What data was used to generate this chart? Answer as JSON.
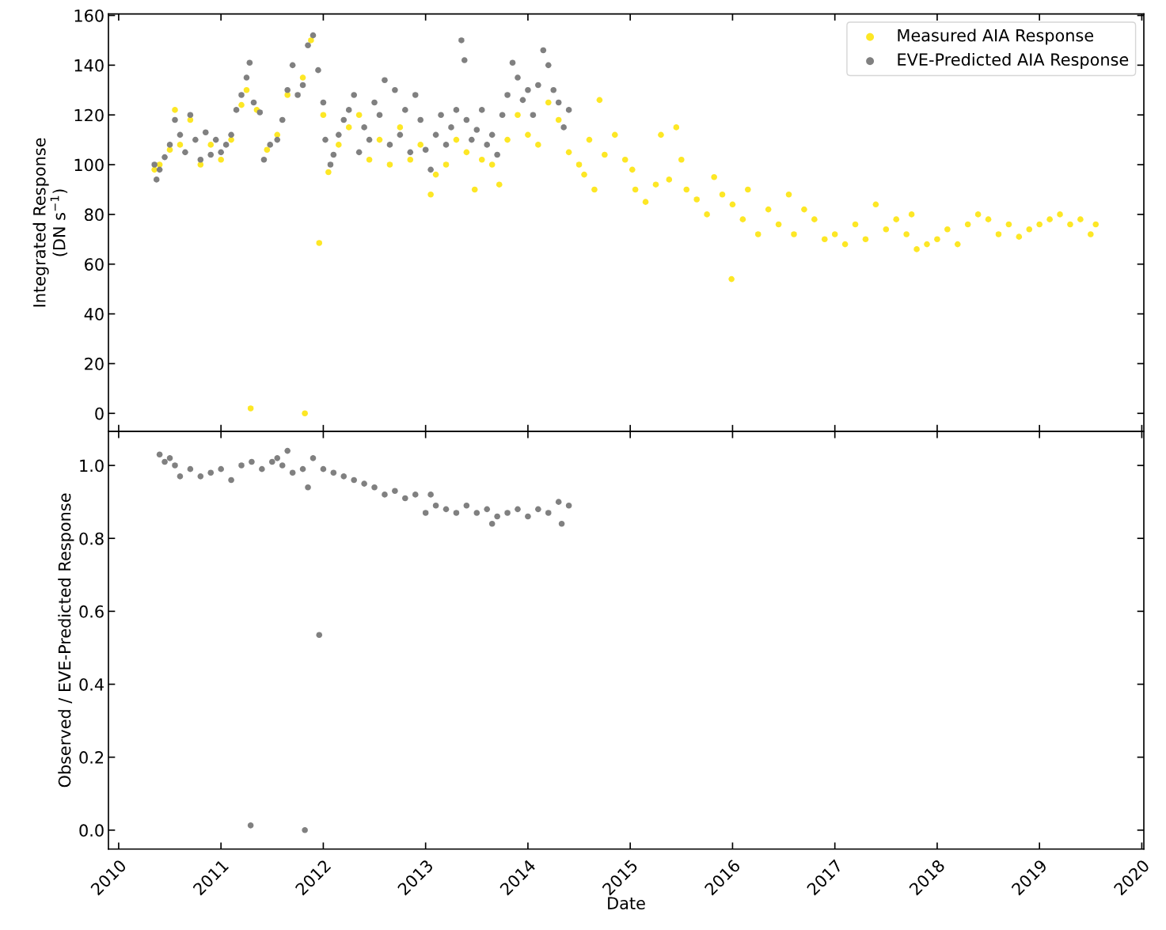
{
  "chart_data": [
    {
      "type": "scatter",
      "ylabel": "Integrated Response\n(DN s$^{−1}$)",
      "xlim": [
        2009.9,
        2020.02
      ],
      "xticks": [
        2010,
        2011,
        2012,
        2013,
        2014,
        2015,
        2016,
        2017,
        2018,
        2019,
        2020
      ],
      "ylim": [
        -7.3,
        160.6
      ],
      "yticks": [
        0,
        20,
        40,
        60,
        80,
        100,
        120,
        140,
        160
      ],
      "tick_labels": "y",
      "legend": "top right",
      "marker": "circle",
      "grid": false,
      "series": [
        {
          "name": "Measured AIA Response",
          "color": "#fde725",
          "x": [
            2010.35,
            2010.4,
            2010.5,
            2010.55,
            2010.6,
            2010.7,
            2010.8,
            2010.9,
            2011.0,
            2011.1,
            2011.2,
            2011.25,
            2011.29,
            2011.35,
            2011.45,
            2011.55,
            2011.65,
            2011.8,
            2011.82,
            2011.88,
            2011.96,
            2012.0,
            2012.05,
            2012.15,
            2012.25,
            2012.35,
            2012.45,
            2012.55,
            2012.65,
            2012.75,
            2012.85,
            2012.95,
            2013.05,
            2013.1,
            2013.2,
            2013.3,
            2013.4,
            2013.48,
            2013.55,
            2013.65,
            2013.72,
            2013.8,
            2013.9,
            2014.0,
            2014.1,
            2014.2,
            2014.3,
            2014.4,
            2014.5,
            2014.55,
            2014.6,
            2014.65,
            2014.7,
            2014.75,
            2014.85,
            2014.95,
            2015.02,
            2015.05,
            2015.15,
            2015.25,
            2015.3,
            2015.38,
            2015.45,
            2015.5,
            2015.55,
            2015.65,
            2015.75,
            2015.82,
            2015.9,
            2015.99,
            2016.0,
            2016.1,
            2016.15,
            2016.25,
            2016.35,
            2016.45,
            2016.55,
            2016.6,
            2016.7,
            2016.8,
            2016.9,
            2017.0,
            2017.1,
            2017.2,
            2017.3,
            2017.4,
            2017.5,
            2017.6,
            2017.7,
            2017.75,
            2017.8,
            2017.9,
            2018.0,
            2018.1,
            2018.2,
            2018.3,
            2018.4,
            2018.5,
            2018.6,
            2018.7,
            2018.8,
            2018.9,
            2019.0,
            2019.1,
            2019.2,
            2019.3,
            2019.4,
            2019.5,
            2019.55
          ],
          "values": [
            98,
            100,
            106,
            122,
            108,
            118,
            100,
            108,
            102,
            110,
            124,
            130,
            2,
            122,
            106,
            112,
            128,
            135,
            0,
            150,
            68.5,
            120,
            97,
            108,
            115,
            120,
            102,
            110,
            100,
            115,
            102,
            108,
            88,
            96,
            100,
            110,
            105,
            90,
            102,
            100,
            92,
            110,
            120,
            112,
            108,
            125,
            118,
            105,
            100,
            96,
            110,
            90,
            126,
            104,
            112,
            102,
            98,
            90,
            85,
            92,
            112,
            94,
            115,
            102,
            90,
            86,
            80,
            95,
            88,
            54,
            84,
            78,
            90,
            72,
            82,
            76,
            88,
            72,
            82,
            78,
            70,
            72,
            68,
            76,
            70,
            84,
            74,
            78,
            72,
            80,
            66,
            68,
            70,
            74,
            68,
            76,
            80,
            78,
            72,
            76,
            71,
            74,
            76,
            78,
            80,
            76,
            78,
            72,
            76
          ]
        },
        {
          "name": "EVE-Predicted AIA Response",
          "color": "#808080",
          "x": [
            2010.35,
            2010.37,
            2010.4,
            2010.45,
            2010.5,
            2010.55,
            2010.6,
            2010.65,
            2010.7,
            2010.75,
            2010.8,
            2010.85,
            2010.9,
            2010.95,
            2011.0,
            2011.05,
            2011.1,
            2011.15,
            2011.2,
            2011.25,
            2011.28,
            2011.32,
            2011.38,
            2011.42,
            2011.48,
            2011.55,
            2011.6,
            2011.65,
            2011.7,
            2011.75,
            2011.8,
            2011.85,
            2011.9,
            2011.95,
            2012.0,
            2012.02,
            2012.07,
            2012.1,
            2012.15,
            2012.2,
            2012.25,
            2012.3,
            2012.35,
            2012.4,
            2012.45,
            2012.5,
            2012.55,
            2012.6,
            2012.65,
            2012.7,
            2012.75,
            2012.8,
            2012.85,
            2012.9,
            2012.95,
            2013.0,
            2013.05,
            2013.1,
            2013.15,
            2013.2,
            2013.25,
            2013.3,
            2013.35,
            2013.38,
            2013.4,
            2013.45,
            2013.5,
            2013.55,
            2013.6,
            2013.65,
            2013.7,
            2013.75,
            2013.8,
            2013.85,
            2013.9,
            2013.95,
            2014.0,
            2014.05,
            2014.1,
            2014.15,
            2014.2,
            2014.25,
            2014.3,
            2014.35,
            2014.4
          ],
          "values": [
            100,
            94,
            98,
            103,
            108,
            118,
            112,
            105,
            120,
            110,
            102,
            113,
            104,
            110,
            105,
            108,
            112,
            122,
            128,
            135,
            141,
            125,
            121,
            102,
            108,
            110,
            118,
            130,
            140,
            128,
            132,
            148,
            152,
            138,
            125,
            110,
            100,
            104,
            112,
            118,
            122,
            128,
            105,
            115,
            110,
            125,
            120,
            134,
            108,
            130,
            112,
            122,
            105,
            128,
            118,
            106,
            98,
            112,
            120,
            108,
            115,
            122,
            150,
            142,
            118,
            110,
            114,
            122,
            108,
            112,
            104,
            120,
            128,
            141,
            135,
            126,
            130,
            120,
            132,
            146,
            140,
            130,
            125,
            115,
            122
          ]
        }
      ]
    },
    {
      "type": "scatter",
      "xlabel": "Date",
      "ylabel": "Observed / EVE-Predicted Response",
      "xlim": [
        2009.9,
        2020.02
      ],
      "xticks": [
        2010,
        2011,
        2012,
        2013,
        2014,
        2015,
        2016,
        2017,
        2018,
        2019,
        2020
      ],
      "ylim": [
        -0.052,
        1.093
      ],
      "yticks": [
        {
          "value": 0,
          "label": "0.0"
        },
        0.2,
        0.4,
        0.6,
        0.8,
        {
          "value": 1,
          "label": "1.0"
        }
      ],
      "marker": "circle",
      "grid": false,
      "legend": false,
      "series": [
        {
          "color": "#808080",
          "x": [
            2010.4,
            2010.45,
            2010.5,
            2010.55,
            2010.6,
            2010.7,
            2010.8,
            2010.9,
            2011.0,
            2011.1,
            2011.2,
            2011.29,
            2011.3,
            2011.4,
            2011.5,
            2011.55,
            2011.6,
            2011.65,
            2011.7,
            2011.8,
            2011.82,
            2011.85,
            2011.9,
            2011.96,
            2012.0,
            2012.1,
            2012.2,
            2012.3,
            2012.4,
            2012.5,
            2012.6,
            2012.7,
            2012.8,
            2012.9,
            2013.0,
            2013.05,
            2013.1,
            2013.2,
            2013.3,
            2013.4,
            2013.5,
            2013.6,
            2013.65,
            2013.7,
            2013.8,
            2013.9,
            2014.0,
            2014.1,
            2014.2,
            2014.3,
            2014.33,
            2014.4
          ],
          "values": [
            1.03,
            1.01,
            1.02,
            1.0,
            0.97,
            0.99,
            0.97,
            0.98,
            0.99,
            0.96,
            1.0,
            0.013,
            1.01,
            0.99,
            1.01,
            1.02,
            1.0,
            1.04,
            0.98,
            0.99,
            0.0,
            0.94,
            1.02,
            0.535,
            0.99,
            0.98,
            0.97,
            0.96,
            0.95,
            0.94,
            0.92,
            0.93,
            0.91,
            0.92,
            0.87,
            0.92,
            0.89,
            0.88,
            0.87,
            0.89,
            0.87,
            0.88,
            0.84,
            0.86,
            0.87,
            0.88,
            0.86,
            0.88,
            0.87,
            0.9,
            0.84,
            0.89
          ]
        }
      ]
    }
  ]
}
